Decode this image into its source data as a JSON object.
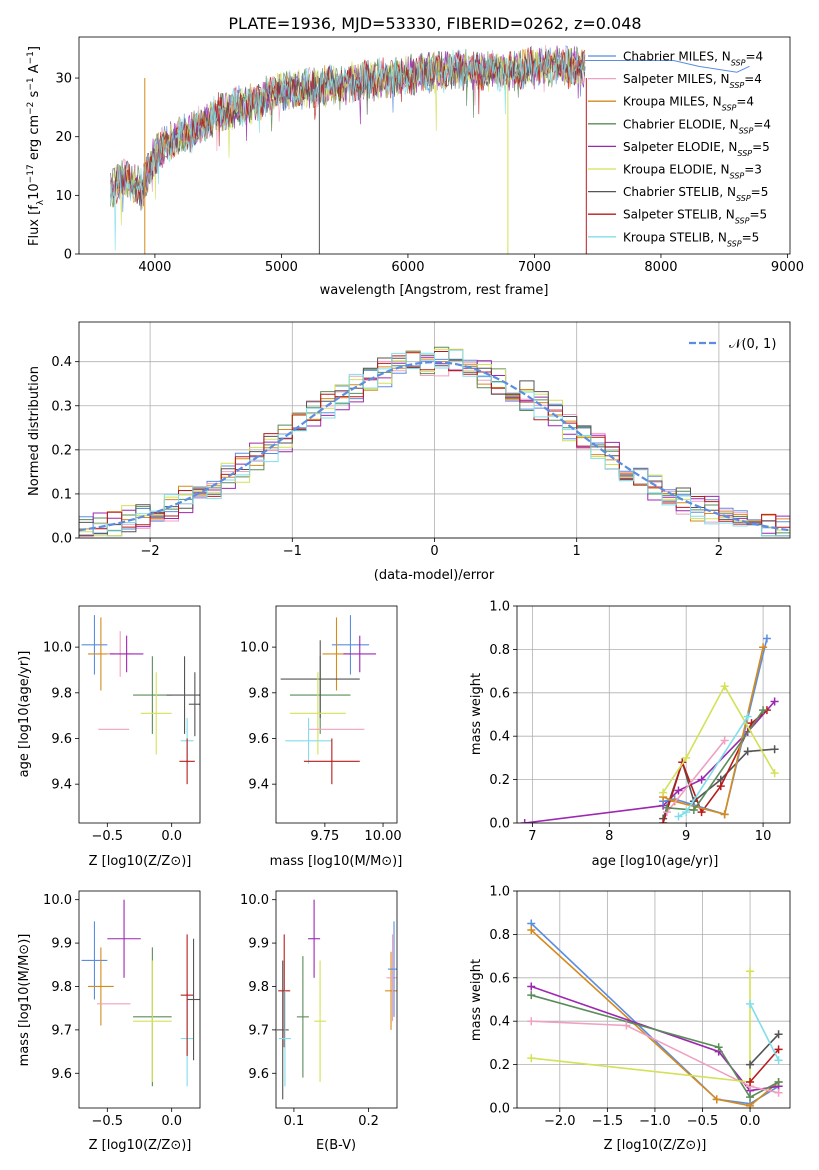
{
  "title": "PLATE=1936, MJD=53330, FIBERID=0262, z=0.048",
  "colors": {
    "Chabrier MILES": "#5b8de0",
    "Salpeter MILES": "#f0a0c0",
    "Kroupa MILES": "#d68a1c",
    "Chabrier ELODIE": "#5a8c5a",
    "Salpeter ELODIE": "#9c27b0",
    "Kroupa ELODIE": "#d4e157",
    "Chabrier STELIB": "#555555",
    "Salpeter STELIB": "#b71c1c",
    "Kroupa STELIB": "#80deea"
  },
  "chart_data": [
    {
      "id": "spectrum",
      "type": "line",
      "xlabel": "wavelength [Angstrom, rest frame]",
      "ylabel": "Flux [f_λ10^-17 erg cm^-2 s^-1 A^-1]",
      "xlim": [
        3400,
        9020
      ],
      "ylim": [
        0,
        37
      ],
      "xticks": [
        4000,
        5000,
        6000,
        7000,
        8000,
        9000
      ],
      "yticks": [
        0,
        10,
        20,
        30
      ],
      "legend_position": "top-right",
      "legend": [
        {
          "name": "Chabrier MILES",
          "nssp": "4"
        },
        {
          "name": "Salpeter MILES",
          "nssp": "4"
        },
        {
          "name": "Kroupa MILES",
          "nssp": "4"
        },
        {
          "name": "Chabrier ELODIE",
          "nssp": "4"
        },
        {
          "name": "Salpeter ELODIE",
          "nssp": "5"
        },
        {
          "name": "Kroupa ELODIE",
          "nssp": "3"
        },
        {
          "name": "Chabrier STELIB",
          "nssp": "5"
        },
        {
          "name": "Salpeter STELIB",
          "nssp": "5"
        },
        {
          "name": "Kroupa STELIB",
          "nssp": "5"
        }
      ],
      "continuum": [
        [
          3650,
          11
        ],
        [
          3750,
          13
        ],
        [
          3900,
          11
        ],
        [
          4000,
          17
        ],
        [
          4100,
          19
        ],
        [
          4300,
          21
        ],
        [
          4500,
          24
        ],
        [
          4800,
          26
        ],
        [
          5000,
          28
        ],
        [
          5300,
          28.5
        ],
        [
          5500,
          29
        ],
        [
          5800,
          30
        ],
        [
          6000,
          30.5
        ],
        [
          6200,
          31
        ],
        [
          6500,
          31.5
        ],
        [
          6800,
          31
        ],
        [
          7000,
          32
        ],
        [
          7200,
          32
        ],
        [
          7400,
          32
        ]
      ],
      "ext_continuum": [
        [
          7400,
          33
        ],
        [
          7600,
          33
        ],
        [
          7800,
          33
        ],
        [
          8100,
          33
        ],
        [
          8300,
          32
        ],
        [
          8600,
          31
        ],
        [
          8700,
          32
        ]
      ]
    },
    {
      "id": "residuals",
      "type": "step",
      "xlabel": "(data-model)/error",
      "ylabel": "Normed distribution",
      "xlim": [
        -2.5,
        2.5
      ],
      "ylim": [
        0,
        0.49
      ],
      "xticks": [
        -2,
        -1,
        0,
        1,
        2
      ],
      "yticks": [
        0.0,
        0.1,
        0.2,
        0.3,
        0.4
      ],
      "grid": true,
      "legend_position": "top-right",
      "legend": "𝒩(0, 1)"
    },
    {
      "id": "age-vs-z",
      "type": "errorbar",
      "xlabel": "Z [log10(Z/Z⊙)]",
      "ylabel": "age  [log10(age/yr)]",
      "xlim": [
        -0.72,
        0.22
      ],
      "ylim": [
        9.23,
        10.18
      ],
      "xticks": [
        -0.5,
        0.0
      ],
      "yticks": [
        9.4,
        9.6,
        9.8,
        10.0
      ],
      "points": [
        {
          "s": "Chabrier MILES",
          "x": -0.6,
          "y": 10.01,
          "xe": 0.1,
          "ye": 0.13
        },
        {
          "s": "Kroupa MILES",
          "x": -0.55,
          "y": 9.97,
          "xe": 0.1,
          "ye": 0.16
        },
        {
          "s": "Salpeter MILES",
          "x": -0.4,
          "y": 9.97,
          "xe": 0.1,
          "ye": 0.1
        },
        {
          "s": "Salpeter ELODIE",
          "x": -0.35,
          "y": 9.97,
          "xe": 0.13,
          "ye": 0.08
        },
        {
          "s": "Chabrier ELODIE",
          "x": -0.15,
          "y": 9.79,
          "xe": 0.15,
          "ye": 0.17
        },
        {
          "s": "Chabrier STELIB",
          "x": 0.1,
          "y": 9.79,
          "xe": 0.14,
          "ye": 0.17
        },
        {
          "s": "Kroupa ELODIE",
          "x": -0.12,
          "y": 9.71,
          "xe": 0.12,
          "ye": 0.18
        },
        {
          "s": "Salpeter MILES",
          "x": -0.45,
          "y": 9.64,
          "xe": 0.12,
          "ye": 0.0
        },
        {
          "s": "Kroupa STELIB",
          "x": 0.12,
          "y": 9.59,
          "xe": 0.05,
          "ye": 0.1
        },
        {
          "s": "Salpeter STELIB",
          "x": 0.12,
          "y": 9.5,
          "xe": 0.06,
          "ye": 0.1
        },
        {
          "s": "Chabrier STELIB",
          "x": 0.18,
          "y": 9.75,
          "xe": 0.0,
          "ye": 0.14
        }
      ]
    },
    {
      "id": "age-vs-mass",
      "type": "errorbar",
      "xlabel": "mass [log10(M/M⊙)]",
      "ylabel": "",
      "xlim": [
        9.54,
        10.06
      ],
      "ylim": [
        9.23,
        10.18
      ],
      "xticks": [
        9.75,
        10.0
      ],
      "yticks": [
        9.4,
        9.6,
        9.8,
        10.0
      ],
      "points": [
        {
          "s": "Chabrier MILES",
          "x": 9.86,
          "y": 10.01,
          "xe": 0.08,
          "ye": 0.13
        },
        {
          "s": "Kroupa MILES",
          "x": 9.8,
          "y": 9.97,
          "xe": 0.06,
          "ye": 0.16
        },
        {
          "s": "Salpeter ELODIE",
          "x": 9.9,
          "y": 9.97,
          "xe": 0.07,
          "ye": 0.08
        },
        {
          "s": "Chabrier ELODIE",
          "x": 9.73,
          "y": 9.79,
          "xe": 0.13,
          "ye": 0.17
        },
        {
          "s": "Chabrier STELIB",
          "x": 9.73,
          "y": 9.86,
          "xe": 0.17,
          "ye": 0.17
        },
        {
          "s": "Kroupa ELODIE",
          "x": 9.72,
          "y": 9.71,
          "xe": 0.12,
          "ye": 0.18
        },
        {
          "s": "Salpeter MILES",
          "x": 9.8,
          "y": 9.64,
          "xe": 0.12,
          "ye": 0.0
        },
        {
          "s": "Kroupa STELIB",
          "x": 9.68,
          "y": 9.59,
          "xe": 0.1,
          "ye": 0.1
        },
        {
          "s": "Salpeter STELIB",
          "x": 9.78,
          "y": 9.5,
          "xe": 0.12,
          "ye": 0.1
        }
      ]
    },
    {
      "id": "mass-weight-vs-age",
      "type": "line",
      "xlabel": "age  [log10(age/yr)]",
      "ylabel": "mass weight",
      "xlim": [
        6.8,
        10.35
      ],
      "ylim": [
        0.0,
        1.0
      ],
      "xticks": [
        7,
        8,
        9,
        10
      ],
      "yticks": [
        0.0,
        0.2,
        0.4,
        0.6,
        0.8,
        1.0
      ],
      "grid": true,
      "series": [
        {
          "s": "Salpeter ELODIE",
          "points": [
            [
              6.9,
              0.0
            ],
            [
              8.7,
              0.08
            ],
            [
              8.9,
              0.15
            ],
            [
              9.2,
              0.2
            ],
            [
              9.8,
              0.42
            ],
            [
              10.15,
              0.56
            ]
          ]
        },
        {
          "s": "Chabrier STELIB",
          "points": [
            [
              8.7,
              0.02
            ],
            [
              8.95,
              0.28
            ],
            [
              9.1,
              0.1
            ],
            [
              9.45,
              0.2
            ],
            [
              9.8,
              0.33
            ],
            [
              10.15,
              0.34
            ]
          ]
        },
        {
          "s": "Salpeter STELIB",
          "points": [
            [
              8.7,
              0.0
            ],
            [
              8.95,
              0.28
            ],
            [
              9.2,
              0.05
            ],
            [
              9.45,
              0.17
            ],
            [
              9.85,
              0.46
            ],
            [
              10.05,
              0.52
            ]
          ]
        },
        {
          "s": "Chabrier MILES",
          "points": [
            [
              8.7,
              0.1
            ],
            [
              8.85,
              0.11
            ],
            [
              9.5,
              0.04
            ],
            [
              10.05,
              0.85
            ]
          ]
        },
        {
          "s": "Kroupa MILES",
          "points": [
            [
              8.7,
              0.12
            ],
            [
              8.85,
              0.1
            ],
            [
              9.5,
              0.04
            ],
            [
              10.0,
              0.81
            ]
          ]
        },
        {
          "s": "Salpeter MILES",
          "points": [
            [
              8.75,
              0.05
            ],
            [
              9.5,
              0.38
            ]
          ]
        },
        {
          "s": "Chabrier ELODIE",
          "points": [
            [
              8.75,
              0.07
            ],
            [
              9.1,
              0.06
            ],
            [
              10.0,
              0.52
            ]
          ]
        },
        {
          "s": "Kroupa ELODIE",
          "points": [
            [
              8.7,
              0.14
            ],
            [
              9.0,
              0.3
            ],
            [
              9.5,
              0.63
            ],
            [
              10.15,
              0.23
            ]
          ]
        },
        {
          "s": "Kroupa STELIB",
          "points": [
            [
              8.9,
              0.03
            ],
            [
              9.0,
              0.05
            ],
            [
              9.8,
              0.49
            ]
          ]
        }
      ]
    },
    {
      "id": "mass-vs-z",
      "type": "errorbar",
      "xlabel": "Z [log10(Z/Z⊙)]",
      "ylabel": "mass [log10(M/M⊙)]",
      "xlim": [
        -0.72,
        0.22
      ],
      "ylim": [
        9.52,
        10.02
      ],
      "xticks": [
        -0.5,
        0.0
      ],
      "yticks": [
        9.6,
        9.7,
        9.8,
        9.9,
        10.0
      ],
      "points": [
        {
          "s": "Chabrier MILES",
          "x": -0.6,
          "y": 9.86,
          "xe": 0.1,
          "ye": 0.09
        },
        {
          "s": "Kroupa MILES",
          "x": -0.55,
          "y": 9.8,
          "xe": 0.1,
          "ye": 0.09
        },
        {
          "s": "Salpeter MILES",
          "x": -0.45,
          "y": 9.76,
          "xe": 0.13,
          "ye": 0.0
        },
        {
          "s": "Salpeter ELODIE",
          "x": -0.37,
          "y": 9.91,
          "xe": 0.13,
          "ye": 0.09
        },
        {
          "s": "Chabrier ELODIE",
          "x": -0.15,
          "y": 9.73,
          "xe": 0.15,
          "ye": 0.16
        },
        {
          "s": "Kroupa ELODIE",
          "x": -0.15,
          "y": 9.72,
          "xe": 0.15,
          "ye": 0.14
        },
        {
          "s": "Kroupa STELIB",
          "x": 0.12,
          "y": 9.68,
          "xe": 0.05,
          "ye": 0.11
        },
        {
          "s": "Salpeter STELIB",
          "x": 0.12,
          "y": 9.78,
          "xe": 0.05,
          "ye": 0.14
        },
        {
          "s": "Chabrier STELIB",
          "x": 0.17,
          "y": 9.77,
          "xe": 0.0,
          "ye": 0.14
        }
      ]
    },
    {
      "id": "mass-vs-ebv",
      "type": "errorbar",
      "xlabel": "E(B-V)",
      "ylabel": "",
      "xlim": [
        0.076,
        0.238
      ],
      "ylim": [
        9.52,
        10.02
      ],
      "xticks": [
        0.1,
        0.2
      ],
      "yticks": [
        9.6,
        9.7,
        9.8,
        9.9,
        10.0
      ],
      "points": [
        {
          "s": "Chabrier STELIB",
          "x": 0.085,
          "y": 9.7,
          "xe": 0,
          "ye": 0.16
        },
        {
          "s": "Salpeter STELIB",
          "x": 0.087,
          "y": 9.79,
          "xe": 0,
          "ye": 0.13
        },
        {
          "s": "Kroupa STELIB",
          "x": 0.088,
          "y": 9.68,
          "xe": 0,
          "ye": 0.11
        },
        {
          "s": "Chabrier ELODIE",
          "x": 0.112,
          "y": 9.73,
          "xe": 0,
          "ye": 0.14
        },
        {
          "s": "Salpeter ELODIE",
          "x": 0.127,
          "y": 9.91,
          "xe": 0,
          "ye": 0.09
        },
        {
          "s": "Kroupa ELODIE",
          "x": 0.135,
          "y": 9.72,
          "xe": 0,
          "ye": 0.14
        },
        {
          "s": "Kroupa MILES",
          "x": 0.23,
          "y": 9.79,
          "xe": 0,
          "ye": 0.09
        },
        {
          "s": "Salpeter MILES",
          "x": 0.232,
          "y": 9.82,
          "xe": 0,
          "ye": 0.1
        },
        {
          "s": "Chabrier MILES",
          "x": 0.234,
          "y": 9.84,
          "xe": 0,
          "ye": 0.11
        }
      ]
    },
    {
      "id": "mass-weight-vs-z",
      "type": "line",
      "xlabel": "Z [log10(Z/Z⊙)]",
      "ylabel": "mass weight",
      "xlim": [
        -2.45,
        0.42
      ],
      "ylim": [
        0.0,
        1.0
      ],
      "xticks": [
        -2.0,
        -1.5,
        -1.0,
        -0.5,
        0.0
      ],
      "yticks": [
        0.0,
        0.2,
        0.4,
        0.6,
        0.8,
        1.0
      ],
      "grid": true,
      "series": [
        {
          "s": "Chabrier MILES",
          "points": [
            [
              -2.3,
              0.85
            ],
            [
              -0.35,
              0.04
            ],
            [
              0.0,
              0.02
            ],
            [
              0.3,
              0.1
            ]
          ]
        },
        {
          "s": "Kroupa MILES",
          "points": [
            [
              -2.3,
              0.82
            ],
            [
              -0.35,
              0.04
            ],
            [
              0.0,
              0.01
            ],
            [
              0.3,
              0.12
            ]
          ]
        },
        {
          "s": "Salpeter ELODIE",
          "points": [
            [
              -2.3,
              0.56
            ],
            [
              -0.33,
              0.26
            ],
            [
              0.0,
              0.08
            ],
            [
              0.3,
              0.1
            ]
          ]
        },
        {
          "s": "Chabrier ELODIE",
          "points": [
            [
              -2.3,
              0.52
            ],
            [
              -0.33,
              0.28
            ],
            [
              0.0,
              0.05
            ],
            [
              0.3,
              0.12
            ]
          ]
        },
        {
          "s": "Salpeter MILES",
          "points": [
            [
              -2.3,
              0.4
            ],
            [
              -1.3,
              0.38
            ],
            [
              0.0,
              0.1
            ],
            [
              0.3,
              0.07
            ]
          ]
        },
        {
          "s": "Kroupa ELODIE",
          "points": [
            [
              -2.3,
              0.23
            ],
            [
              0.0,
              0.12
            ],
            [
              0.0,
              0.63
            ]
          ]
        },
        {
          "s": "Chabrier STELIB",
          "points": [
            [
              0.0,
              0.2
            ],
            [
              0.3,
              0.34
            ]
          ]
        },
        {
          "s": "Salpeter STELIB",
          "points": [
            [
              0.0,
              0.12
            ],
            [
              0.3,
              0.27
            ]
          ]
        },
        {
          "s": "Kroupa STELIB",
          "points": [
            [
              0.0,
              0.48
            ],
            [
              0.3,
              0.22
            ]
          ]
        }
      ]
    }
  ]
}
